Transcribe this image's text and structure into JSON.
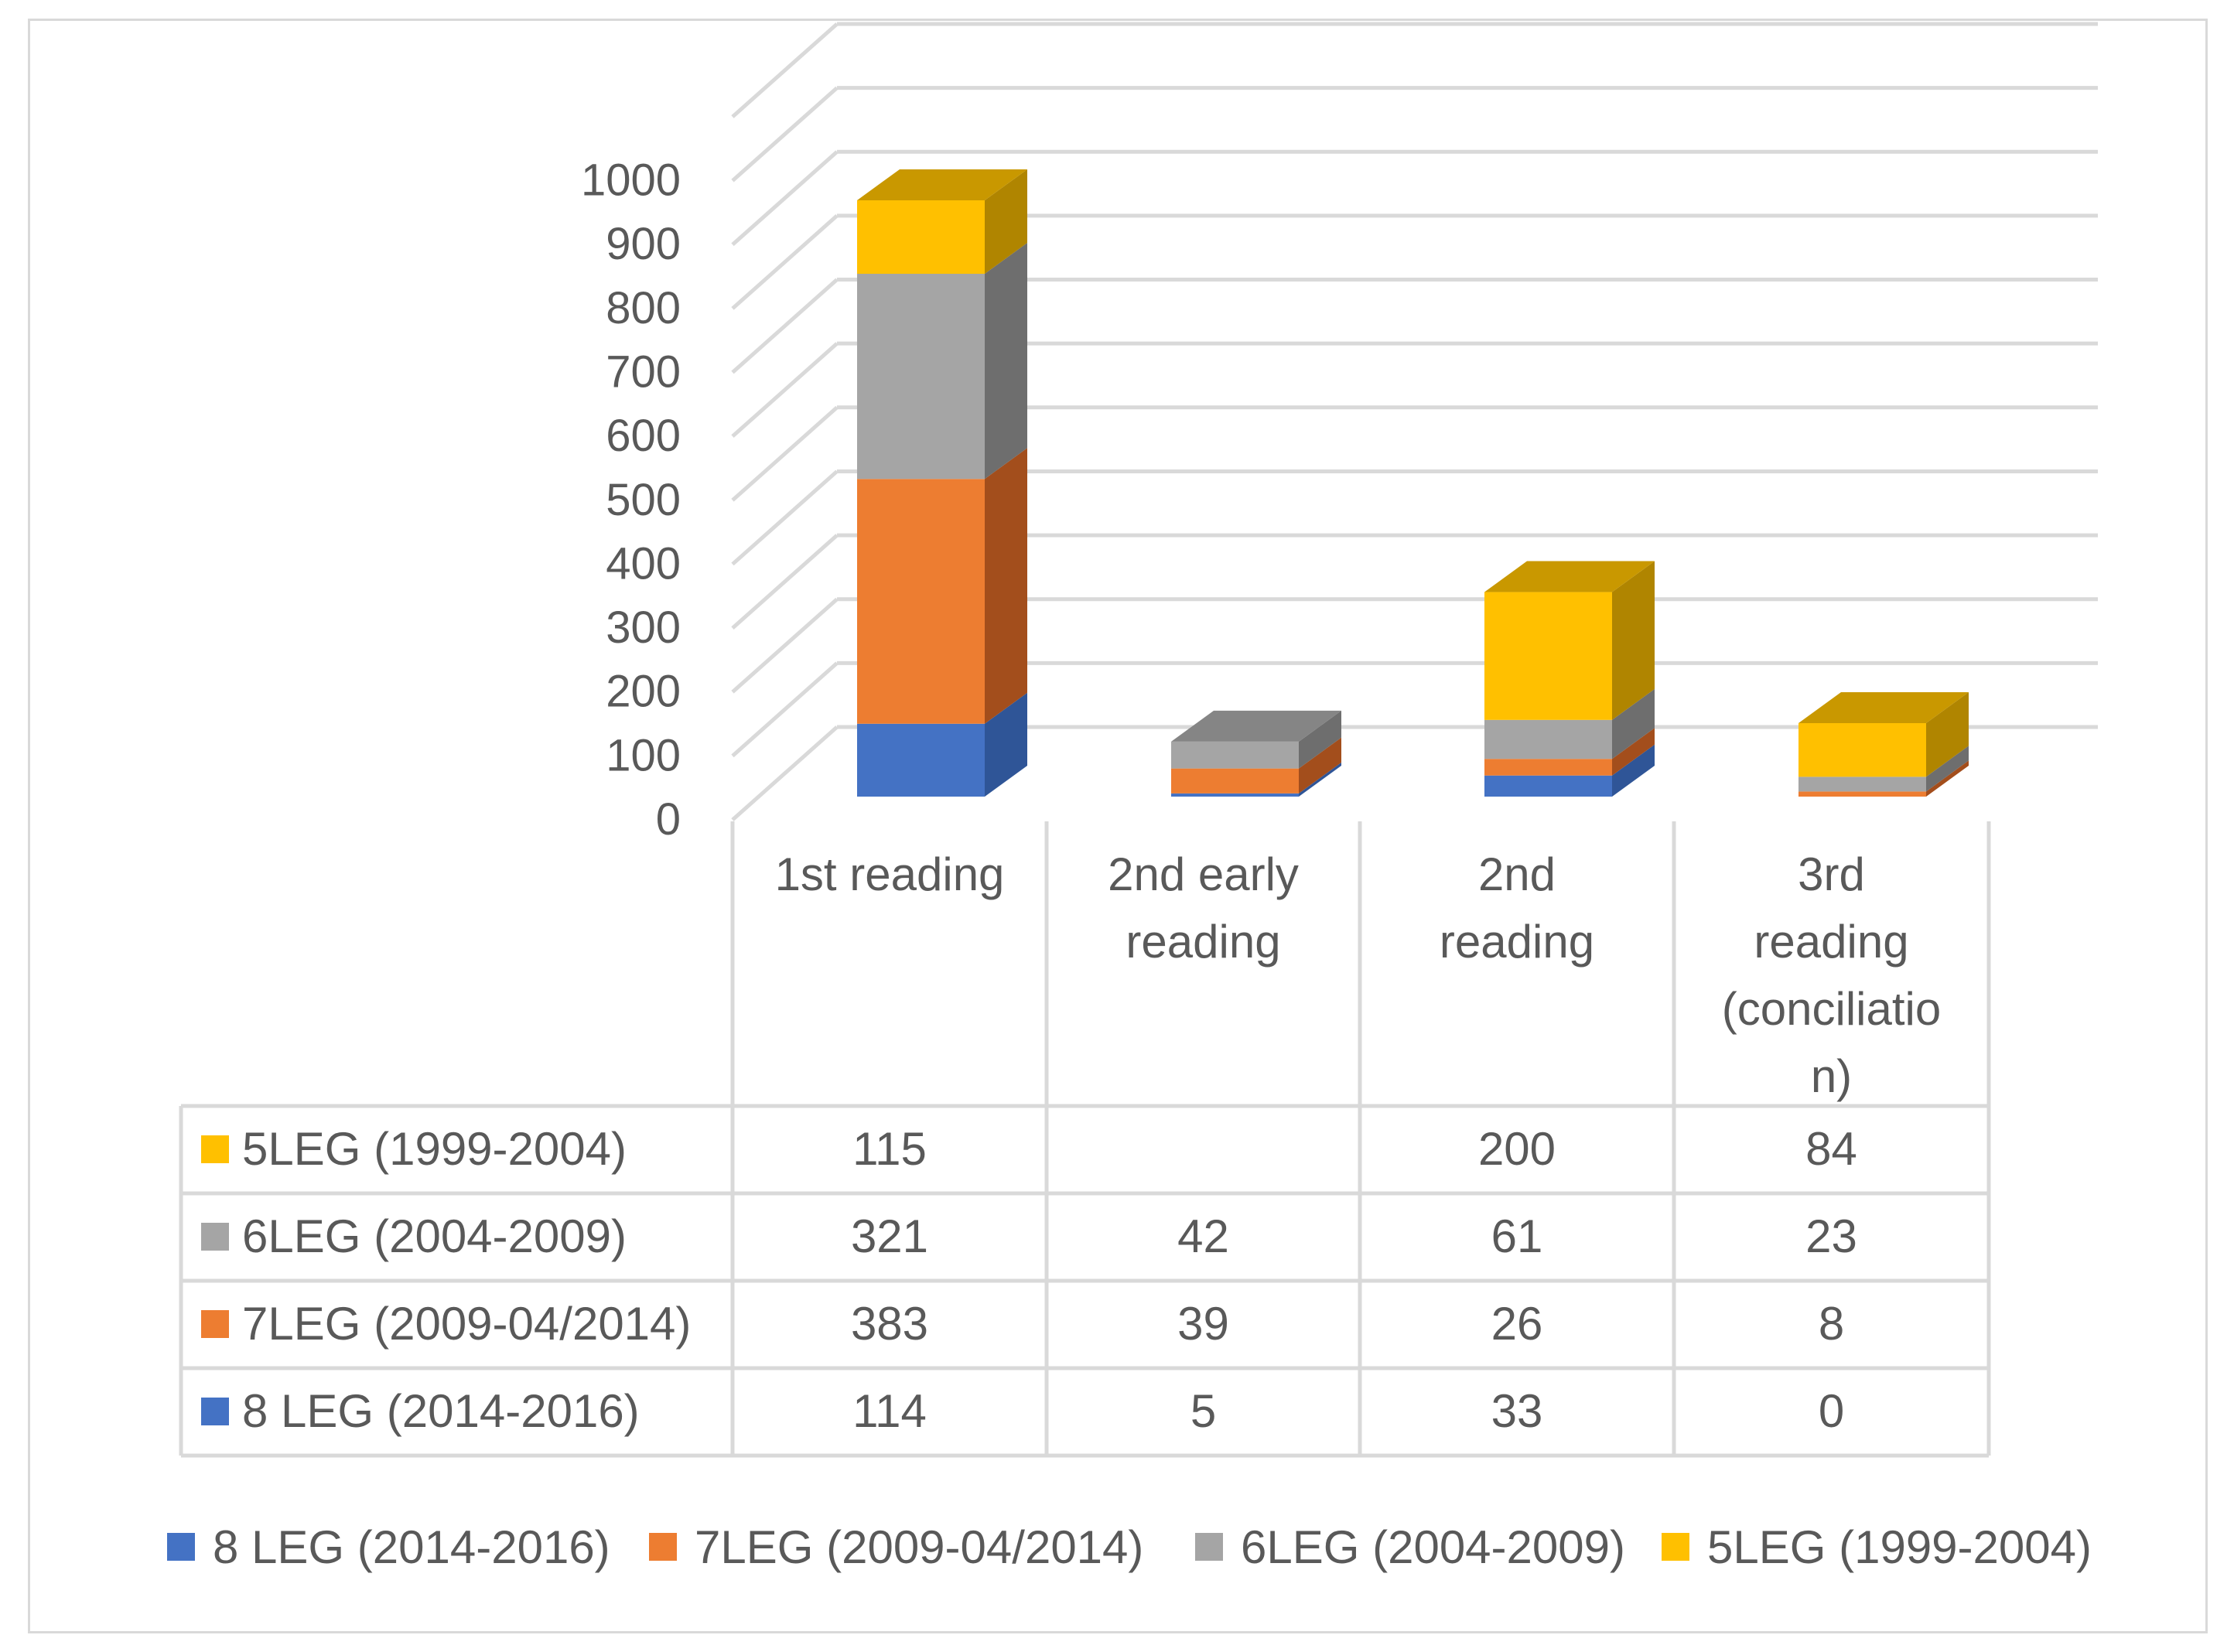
{
  "chart_data": {
    "type": "bar",
    "subtype": "3d-stacked-column-with-data-table",
    "categories": [
      "1st reading",
      "2nd early reading",
      "2nd reading",
      "3rd reading (conciliation)"
    ],
    "category_lines": [
      [
        "1st reading"
      ],
      [
        "2nd early",
        "reading"
      ],
      [
        "2nd",
        "reading"
      ],
      [
        "3rd",
        "reading",
        "(conciliatio",
        "n)"
      ]
    ],
    "series": [
      {
        "name": "8 LEG (2014-2016)",
        "values": [
          114,
          5,
          33,
          0
        ],
        "color": "#4472c4",
        "side": "#2f5597",
        "top": "#5b8bd6"
      },
      {
        "name": "7LEG (2009-04/2014)",
        "values": [
          383,
          39,
          26,
          8
        ],
        "color": "#ed7d31",
        "side": "#a34e1c",
        "top": "#c4631f"
      },
      {
        "name": "6LEG (2004-2009)",
        "values": [
          321,
          42,
          61,
          23
        ],
        "color": "#a5a5a5",
        "side": "#6e6e6e",
        "top": "#858585"
      },
      {
        "name": "5LEG (1999-2004)",
        "values": [
          115,
          null,
          200,
          84
        ],
        "color": "#ffc000",
        "side": "#b08500",
        "top": "#c99800"
      }
    ],
    "table_rows": [
      {
        "series": "5LEG (1999-2004)",
        "cells": [
          "115",
          "",
          "200",
          "84"
        ]
      },
      {
        "series": "6LEG (2004-2009)",
        "cells": [
          "321",
          "42",
          "61",
          "23"
        ]
      },
      {
        "series": "7LEG (2009-04/2014)",
        "cells": [
          "383",
          "39",
          "26",
          "8"
        ]
      },
      {
        "series": "8 LEG (2014-2016)",
        "cells": [
          "114",
          "5",
          "33",
          "0"
        ]
      }
    ],
    "yticks": [
      "0",
      "100",
      "200",
      "300",
      "400",
      "500",
      "600",
      "700",
      "800",
      "900",
      "1000"
    ],
    "ylim": [
      0,
      1100
    ],
    "grid": true,
    "legend_position": "bottom",
    "legend_order": [
      "8 LEG (2014-2016)",
      "7LEG (2009-04/2014)",
      "6LEG (2004-2009)",
      "5LEG (1999-2004)"
    ]
  }
}
